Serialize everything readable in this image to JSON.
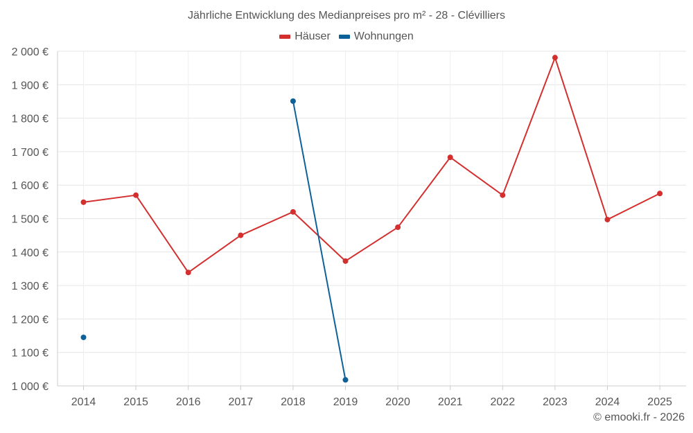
{
  "chart_data": {
    "type": "line",
    "title": "Jährliche Entwicklung des Medianpreises pro m² - 28 - Clévilliers",
    "categories": [
      "2014",
      "2015",
      "2016",
      "2017",
      "2018",
      "2019",
      "2020",
      "2021",
      "2022",
      "2023",
      "2024",
      "2025"
    ],
    "series": [
      {
        "name": "Häuser",
        "color": "#d32f2f",
        "values": [
          1549,
          1570,
          1339,
          1450,
          1520,
          1373,
          1474,
          1683,
          1570,
          1981,
          1497,
          1575
        ]
      },
      {
        "name": "Wohnungen",
        "color": "#0d6199",
        "values": [
          1145,
          null,
          null,
          null,
          1851,
          1018,
          null,
          null,
          null,
          null,
          null,
          null
        ]
      }
    ],
    "ylim": [
      1000,
      2000
    ],
    "yticks": [
      1000,
      1100,
      1200,
      1300,
      1400,
      1500,
      1600,
      1700,
      1800,
      1900,
      2000
    ],
    "ytick_labels": [
      "1 000 €",
      "1 100 €",
      "1 200 €",
      "1 300 €",
      "1 400 €",
      "1 500 €",
      "1 600 €",
      "1 700 €",
      "1 800 €",
      "1 900 €",
      "2 000 €"
    ],
    "xlabel": "",
    "ylabel": "",
    "grid": true,
    "legend": "top-center"
  },
  "footer": "© emooki.fr - 2026"
}
